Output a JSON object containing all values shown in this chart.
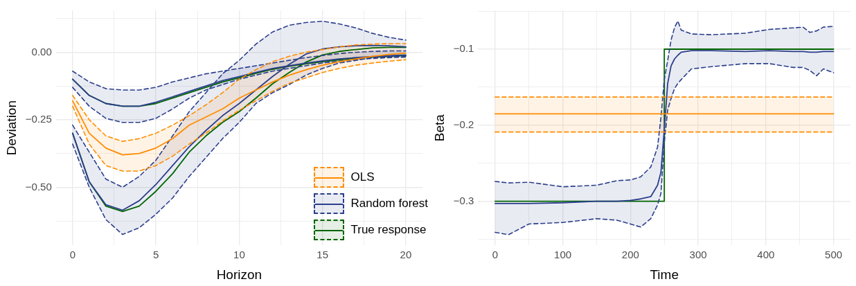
{
  "chart_data": [
    {
      "type": "line",
      "xlabel": "Horizon",
      "ylabel": "Deviation",
      "legend": "bottom right",
      "grid": true,
      "marker": "none",
      "xlim": [
        -1,
        21
      ],
      "ylim": [
        -0.715,
        0.155
      ],
      "xticks": [
        0,
        {
          "value": 2.5,
          "label": null
        },
        5,
        {
          "value": 7.5,
          "label": null
        },
        10,
        {
          "value": 12.5,
          "label": null
        },
        15,
        {
          "value": 17.5,
          "label": null
        },
        20
      ],
      "yticks": [
        {
          "value": -0.625,
          "label": null
        },
        {
          "value": -0.5,
          "label": "−0.50"
        },
        {
          "value": -0.375,
          "label": null
        },
        {
          "value": -0.25,
          "label": "−0.25"
        },
        {
          "value": -0.125,
          "label": null
        },
        {
          "value": 0,
          "label": "0.00"
        },
        {
          "value": 0.125,
          "label": null
        }
      ],
      "x": [
        0,
        1,
        2,
        3,
        4,
        5,
        6,
        7,
        8,
        9,
        10,
        11,
        12,
        13,
        14,
        15,
        16,
        17,
        18,
        19,
        20
      ],
      "series": [
        {
          "name": "OLS",
          "color": "#ff8c00",
          "values": [
            -0.18,
            -0.3,
            -0.355,
            -0.38,
            -0.375,
            -0.355,
            -0.32,
            -0.27,
            -0.24,
            -0.21,
            -0.17,
            -0.14,
            -0.11,
            -0.085,
            -0.065,
            -0.048,
            -0.035,
            -0.025,
            -0.015,
            -0.008,
            -0.003
          ],
          "lower": [
            -0.2,
            -0.34,
            -0.42,
            -0.44,
            -0.44,
            -0.42,
            -0.385,
            -0.34,
            -0.3,
            -0.255,
            -0.215,
            -0.18,
            -0.145,
            -0.115,
            -0.095,
            -0.075,
            -0.06,
            -0.048,
            -0.04,
            -0.033,
            -0.028
          ],
          "upper": [
            -0.16,
            -0.25,
            -0.31,
            -0.33,
            -0.32,
            -0.3,
            -0.27,
            -0.235,
            -0.195,
            -0.15,
            -0.1,
            -0.065,
            -0.035,
            -0.015,
            0,
            0.01,
            0.02,
            0.027,
            0.03,
            0.032,
            0.032
          ]
        },
        {
          "color": "#ff8c00",
          "line_style": "dashed",
          "values": [
            -0.2,
            -0.34,
            -0.42,
            -0.44,
            -0.44,
            -0.42,
            -0.385,
            -0.34,
            -0.3,
            -0.255,
            -0.215,
            -0.18,
            -0.145,
            -0.115,
            -0.095,
            -0.075,
            -0.06,
            -0.048,
            -0.04,
            -0.033,
            -0.028
          ]
        },
        {
          "color": "#ff8c00",
          "line_style": "dashed",
          "values": [
            -0.16,
            -0.25,
            -0.31,
            -0.33,
            -0.32,
            -0.3,
            -0.27,
            -0.235,
            -0.195,
            -0.15,
            -0.1,
            -0.065,
            -0.035,
            -0.015,
            0,
            0.01,
            0.02,
            0.027,
            0.03,
            0.032,
            0.032
          ]
        },
        {
          "name": "Random forest",
          "color": "#2b3f8c",
          "values": [
            -0.1,
            -0.16,
            -0.19,
            -0.2,
            -0.2,
            -0.185,
            -0.165,
            -0.145,
            -0.125,
            -0.105,
            -0.09,
            -0.075,
            -0.06,
            -0.05,
            -0.04,
            -0.032,
            -0.025,
            -0.02,
            -0.016,
            -0.013,
            -0.01
          ],
          "lower": [
            -0.13,
            -0.2,
            -0.245,
            -0.26,
            -0.26,
            -0.245,
            -0.21,
            -0.17,
            -0.14,
            -0.12,
            -0.1,
            -0.085,
            -0.07,
            -0.06,
            -0.05,
            -0.04,
            -0.033,
            -0.027,
            -0.023,
            -0.02,
            -0.018
          ],
          "upper": [
            -0.07,
            -0.11,
            -0.135,
            -0.14,
            -0.14,
            -0.13,
            -0.11,
            -0.095,
            -0.08,
            -0.07,
            -0.06,
            -0.05,
            -0.04,
            -0.03,
            -0.02,
            -0.012,
            -0.005,
            0,
            0.003,
            0.005,
            0.005
          ]
        },
        {
          "color": "#2b3f8c",
          "line_style": "dashed",
          "values": [
            -0.13,
            -0.2,
            -0.245,
            -0.26,
            -0.26,
            -0.245,
            -0.21,
            -0.17,
            -0.14,
            -0.12,
            -0.1,
            -0.085,
            -0.07,
            -0.06,
            -0.05,
            -0.04,
            -0.033,
            -0.027,
            -0.023,
            -0.02,
            -0.018
          ]
        },
        {
          "color": "#2b3f8c",
          "line_style": "dashed",
          "values": [
            -0.07,
            -0.11,
            -0.135,
            -0.14,
            -0.14,
            -0.13,
            -0.11,
            -0.095,
            -0.08,
            -0.07,
            -0.06,
            -0.05,
            -0.04,
            -0.03,
            -0.02,
            -0.012,
            -0.005,
            0,
            0.003,
            0.005,
            0.005
          ]
        },
        {
          "color": "#2b3f8c",
          "values": [
            -0.3,
            -0.48,
            -0.565,
            -0.585,
            -0.55,
            -0.49,
            -0.42,
            -0.35,
            -0.29,
            -0.235,
            -0.19,
            -0.14,
            -0.09,
            -0.045,
            -0.007,
            0.012,
            0.02,
            0.024,
            0.025,
            0.024,
            0.02
          ],
          "lower": [
            -0.34,
            -0.5,
            -0.62,
            -0.675,
            -0.65,
            -0.6,
            -0.54,
            -0.46,
            -0.39,
            -0.32,
            -0.26,
            -0.19,
            -0.15,
            -0.12,
            -0.085,
            -0.06,
            -0.04,
            -0.03,
            -0.02,
            -0.017,
            -0.015
          ],
          "upper": [
            -0.27,
            -0.37,
            -0.47,
            -0.5,
            -0.46,
            -0.4,
            -0.31,
            -0.22,
            -0.15,
            -0.08,
            -0.03,
            0.03,
            0.075,
            0.1,
            0.11,
            0.115,
            0.105,
            0.09,
            0.07,
            0.055,
            0.045
          ]
        },
        {
          "color": "#2b3f8c",
          "line_style": "dashed",
          "values": [
            -0.34,
            -0.5,
            -0.62,
            -0.675,
            -0.65,
            -0.6,
            -0.54,
            -0.46,
            -0.39,
            -0.32,
            -0.26,
            -0.19,
            -0.15,
            -0.12,
            -0.085,
            -0.06,
            -0.04,
            -0.03,
            -0.02,
            -0.017,
            -0.015
          ]
        },
        {
          "color": "#2b3f8c",
          "line_style": "dashed",
          "values": [
            -0.27,
            -0.37,
            -0.47,
            -0.5,
            -0.46,
            -0.4,
            -0.31,
            -0.22,
            -0.15,
            -0.08,
            -0.03,
            0.03,
            0.075,
            0.1,
            0.11,
            0.115,
            0.105,
            0.09,
            0.07,
            0.055,
            0.045
          ]
        },
        {
          "name": "True response",
          "color": "#006400",
          "values": [
            -0.1,
            -0.16,
            -0.19,
            -0.2,
            -0.2,
            -0.19,
            -0.17,
            -0.15,
            -0.13,
            -0.11,
            -0.095,
            -0.078,
            -0.063,
            -0.052,
            -0.043,
            -0.035,
            -0.028,
            -0.022,
            -0.018,
            -0.015,
            -0.012
          ]
        },
        {
          "color": "#006400",
          "values": [
            -0.3,
            -0.48,
            -0.57,
            -0.59,
            -0.57,
            -0.515,
            -0.45,
            -0.37,
            -0.31,
            -0.26,
            -0.22,
            -0.17,
            -0.117,
            -0.075,
            -0.037,
            -0.01,
            0.003,
            0.01,
            0.016,
            0.018,
            0.018
          ]
        }
      ]
    },
    {
      "type": "line",
      "xlabel": "Time",
      "ylabel": "Beta",
      "grid": true,
      "marker": "none",
      "xlim": [
        -25,
        525
      ],
      "ylim": [
        -0.358,
        -0.049
      ],
      "xticks": [
        0,
        {
          "value": 50,
          "label": null
        },
        100,
        {
          "value": 150,
          "label": null
        },
        200,
        {
          "value": 250,
          "label": null
        },
        300,
        {
          "value": 350,
          "label": null
        },
        400,
        {
          "value": 450,
          "label": null
        },
        500
      ],
      "yticks": [
        {
          "value": -0.35,
          "label": null
        },
        {
          "value": -0.3,
          "label": "−0.3"
        },
        {
          "value": -0.25,
          "label": null
        },
        {
          "value": -0.2,
          "label": "−0.2"
        },
        {
          "value": -0.15,
          "label": null
        },
        {
          "value": -0.1,
          "label": "−0.1"
        },
        {
          "value": -0.05,
          "label": null
        }
      ],
      "series": [
        {
          "color": "#ff8c00",
          "x": [
            0,
            500
          ],
          "values": [
            -0.185,
            -0.185
          ],
          "lower": [
            -0.209,
            -0.209
          ],
          "upper": [
            -0.163,
            -0.163
          ]
        },
        {
          "color": "#ff8c00",
          "line_style": "dashed",
          "x": [
            0,
            500
          ],
          "values": [
            -0.209,
            -0.209
          ]
        },
        {
          "color": "#ff8c00",
          "line_style": "dashed",
          "x": [
            0,
            500
          ],
          "values": [
            -0.163,
            -0.163
          ]
        },
        {
          "color": "#2b3f8c",
          "x": [
            0,
            20,
            50,
            100,
            150,
            180,
            200,
            215,
            230,
            240,
            245,
            250,
            255,
            260,
            265,
            270,
            275,
            290,
            320,
            370,
            405,
            440,
            455,
            465,
            475,
            485,
            500
          ],
          "values": [
            -0.303,
            -0.303,
            -0.303,
            -0.302,
            -0.3,
            -0.3,
            -0.299,
            -0.297,
            -0.294,
            -0.279,
            -0.262,
            -0.205,
            -0.145,
            -0.122,
            -0.113,
            -0.108,
            -0.104,
            -0.102,
            -0.102,
            -0.103,
            -0.102,
            -0.103,
            -0.103,
            -0.104,
            -0.104,
            -0.103,
            -0.103
          ],
          "lower": [
            -0.341,
            -0.344,
            -0.33,
            -0.328,
            -0.323,
            -0.325,
            -0.33,
            -0.334,
            -0.323,
            -0.305,
            -0.29,
            -0.223,
            -0.18,
            -0.165,
            -0.152,
            -0.145,
            -0.14,
            -0.126,
            -0.123,
            -0.119,
            -0.119,
            -0.124,
            -0.124,
            -0.128,
            -0.135,
            -0.126,
            -0.131
          ],
          "upper": [
            -0.274,
            -0.276,
            -0.275,
            -0.281,
            -0.279,
            -0.273,
            -0.272,
            -0.268,
            -0.255,
            -0.229,
            -0.19,
            -0.14,
            -0.115,
            -0.088,
            -0.072,
            -0.063,
            -0.075,
            -0.08,
            -0.081,
            -0.079,
            -0.074,
            -0.072,
            -0.071,
            -0.078,
            -0.076,
            -0.071,
            -0.07
          ]
        },
        {
          "color": "#2b3f8c",
          "line_style": "dashed",
          "x": [
            0,
            20,
            50,
            100,
            150,
            180,
            200,
            215,
            230,
            240,
            245,
            250,
            255,
            260,
            265,
            270,
            275,
            290,
            320,
            370,
            405,
            440,
            455,
            465,
            475,
            485,
            500
          ],
          "values": [
            -0.341,
            -0.344,
            -0.33,
            -0.328,
            -0.323,
            -0.325,
            -0.33,
            -0.334,
            -0.323,
            -0.305,
            -0.29,
            -0.223,
            -0.18,
            -0.165,
            -0.152,
            -0.145,
            -0.14,
            -0.126,
            -0.123,
            -0.119,
            -0.119,
            -0.124,
            -0.124,
            -0.128,
            -0.135,
            -0.126,
            -0.131
          ]
        },
        {
          "color": "#2b3f8c",
          "line_style": "dashed",
          "x": [
            0,
            20,
            50,
            100,
            150,
            180,
            200,
            215,
            230,
            240,
            245,
            250,
            255,
            260,
            265,
            270,
            275,
            290,
            320,
            370,
            405,
            440,
            455,
            465,
            475,
            485,
            500
          ],
          "values": [
            -0.274,
            -0.276,
            -0.275,
            -0.281,
            -0.279,
            -0.273,
            -0.272,
            -0.268,
            -0.255,
            -0.229,
            -0.19,
            -0.14,
            -0.115,
            -0.088,
            -0.072,
            -0.063,
            -0.075,
            -0.08,
            -0.081,
            -0.079,
            -0.074,
            -0.072,
            -0.071,
            -0.078,
            -0.076,
            -0.071,
            -0.07
          ]
        },
        {
          "color": "#006400",
          "x": [
            0,
            250,
            250,
            500
          ],
          "values": [
            -0.3,
            -0.3,
            -0.1,
            -0.1
          ]
        }
      ]
    }
  ]
}
